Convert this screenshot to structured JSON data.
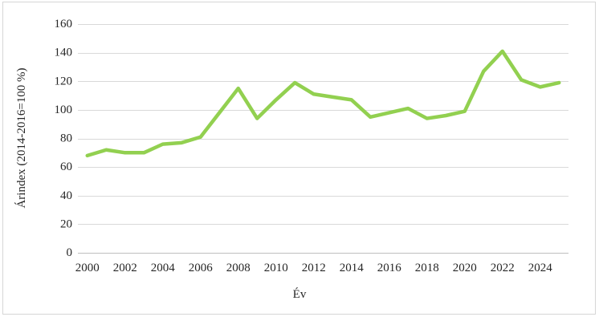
{
  "chart_data": {
    "type": "line",
    "title": "",
    "xlabel": "Év",
    "ylabel": "Árindex (2014-2016=100 %)",
    "x": [
      2000,
      2001,
      2002,
      2003,
      2004,
      2005,
      2006,
      2007,
      2008,
      2009,
      2010,
      2011,
      2012,
      2013,
      2014,
      2015,
      2016,
      2017,
      2018,
      2019,
      2020,
      2021,
      2022,
      2023,
      2024,
      2025
    ],
    "series": [
      {
        "name": "Árindex",
        "color": "#92d050",
        "values": [
          68,
          72,
          70,
          70,
          76,
          77,
          81,
          98,
          115,
          94,
          107,
          119,
          111,
          109,
          107,
          95,
          98,
          101,
          94,
          96,
          99,
          127,
          141,
          121,
          116,
          119
        ]
      }
    ],
    "ylim": [
      0,
      160
    ],
    "ytick_step": 20,
    "ytick_labels": [
      "0",
      "20",
      "40",
      "60",
      "80",
      "100",
      "120",
      "140",
      "160"
    ],
    "xtick_years": [
      2000,
      2002,
      2004,
      2006,
      2008,
      2010,
      2012,
      2014,
      2016,
      2018,
      2020,
      2022,
      2024
    ],
    "grid": "horizontal-only",
    "legend_position": "none",
    "colors": {
      "line": "#92d050",
      "gridline": "#d9d9d9",
      "axis": "#bfbfbf",
      "text": "#262626",
      "border": "#d6d6d6",
      "background": "#ffffff"
    }
  }
}
